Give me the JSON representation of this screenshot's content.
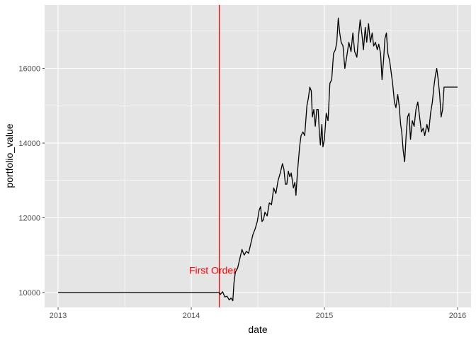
{
  "chart_data": {
    "type": "line",
    "title": "",
    "xlabel": "date",
    "ylabel": "portfolio_value",
    "x_type": "date",
    "xlim": [
      "2012-11-25",
      "2016-02-07"
    ],
    "ylim": [
      9600,
      17700
    ],
    "x_ticks": [
      {
        "value": "2013-01-01",
        "label": "2013"
      },
      {
        "value": "2014-01-01",
        "label": "2014"
      },
      {
        "value": "2015-01-01",
        "label": "2015"
      },
      {
        "value": "2016-01-01",
        "label": "2016"
      }
    ],
    "y_ticks": [
      {
        "value": 10000,
        "label": "10000"
      },
      {
        "value": 12000,
        "label": "12000"
      },
      {
        "value": 14000,
        "label": "14000"
      },
      {
        "value": 16000,
        "label": "16000"
      }
    ],
    "grid": true,
    "colors": {
      "panel_bg": "#e5e5e5",
      "grid_major": "#ffffff",
      "line": "#000000",
      "vline": "#ff0000",
      "annotation": "#ff0000"
    },
    "annotation": {
      "text": "First Order",
      "x": "2014-03-01",
      "y": 10500
    },
    "vline": {
      "x": "2014-03-19"
    },
    "series": [
      {
        "points": [
          [
            "2013-01-01",
            10000
          ],
          [
            "2013-06-01",
            10000
          ],
          [
            "2013-12-01",
            10000
          ],
          [
            "2014-03-18",
            10000
          ],
          [
            "2014-03-22",
            9950
          ],
          [
            "2014-03-28",
            10020
          ],
          [
            "2014-04-03",
            9880
          ],
          [
            "2014-04-09",
            9900
          ],
          [
            "2014-04-15",
            9800
          ],
          [
            "2014-04-20",
            9850
          ],
          [
            "2014-04-25",
            9780
          ],
          [
            "2014-04-28",
            10250
          ],
          [
            "2014-05-02",
            10550
          ],
          [
            "2014-05-08",
            10650
          ],
          [
            "2014-05-14",
            10900
          ],
          [
            "2014-05-20",
            11150
          ],
          [
            "2014-05-26",
            11000
          ],
          [
            "2014-06-01",
            11100
          ],
          [
            "2014-06-07",
            11050
          ],
          [
            "2014-06-13",
            11300
          ],
          [
            "2014-06-19",
            11550
          ],
          [
            "2014-06-25",
            11700
          ],
          [
            "2014-07-01",
            11900
          ],
          [
            "2014-07-06",
            12200
          ],
          [
            "2014-07-10",
            12300
          ],
          [
            "2014-07-14",
            11900
          ],
          [
            "2014-07-18",
            11950
          ],
          [
            "2014-07-22",
            12150
          ],
          [
            "2014-07-28",
            12050
          ],
          [
            "2014-08-03",
            12400
          ],
          [
            "2014-08-09",
            12350
          ],
          [
            "2014-08-15",
            12800
          ],
          [
            "2014-08-21",
            12650
          ],
          [
            "2014-08-27",
            13000
          ],
          [
            "2014-09-02",
            13200
          ],
          [
            "2014-09-08",
            13450
          ],
          [
            "2014-09-12",
            13300
          ],
          [
            "2014-09-16",
            12900
          ],
          [
            "2014-09-20",
            12900
          ],
          [
            "2014-09-24",
            13250
          ],
          [
            "2014-09-28",
            13100
          ],
          [
            "2014-10-02",
            13200
          ],
          [
            "2014-10-08",
            12800
          ],
          [
            "2014-10-12",
            12950
          ],
          [
            "2014-10-15",
            12600
          ],
          [
            "2014-10-19",
            13200
          ],
          [
            "2014-10-25",
            13900
          ],
          [
            "2014-10-29",
            14200
          ],
          [
            "2014-11-03",
            14300
          ],
          [
            "2014-11-08",
            14200
          ],
          [
            "2014-11-14",
            15000
          ],
          [
            "2014-11-18",
            15200
          ],
          [
            "2014-11-22",
            15500
          ],
          [
            "2014-11-26",
            15400
          ],
          [
            "2014-11-29",
            14700
          ],
          [
            "2014-12-03",
            14900
          ],
          [
            "2014-12-07",
            14450
          ],
          [
            "2014-12-11",
            14900
          ],
          [
            "2014-12-15",
            14900
          ],
          [
            "2014-12-18",
            14300
          ],
          [
            "2014-12-21",
            13950
          ],
          [
            "2014-12-25",
            14500
          ],
          [
            "2014-12-28",
            13900
          ],
          [
            "2015-01-01",
            14100
          ],
          [
            "2015-01-06",
            14800
          ],
          [
            "2015-01-11",
            14600
          ],
          [
            "2015-01-16",
            15600
          ],
          [
            "2015-01-21",
            15700
          ],
          [
            "2015-01-26",
            16400
          ],
          [
            "2015-01-31",
            16500
          ],
          [
            "2015-02-04",
            16700
          ],
          [
            "2015-02-08",
            17350
          ],
          [
            "2015-02-12",
            16950
          ],
          [
            "2015-02-16",
            16700
          ],
          [
            "2015-02-21",
            16600
          ],
          [
            "2015-02-26",
            16000
          ],
          [
            "2015-03-03",
            16300
          ],
          [
            "2015-03-09",
            16700
          ],
          [
            "2015-03-15",
            16450
          ],
          [
            "2015-03-20",
            16950
          ],
          [
            "2015-03-25",
            16450
          ],
          [
            "2015-03-31",
            16300
          ],
          [
            "2015-04-05",
            16900
          ],
          [
            "2015-04-09",
            17300
          ],
          [
            "2015-04-14",
            16900
          ],
          [
            "2015-04-18",
            16500
          ],
          [
            "2015-04-23",
            17100
          ],
          [
            "2015-04-27",
            16700
          ],
          [
            "2015-05-02",
            17200
          ],
          [
            "2015-05-07",
            16700
          ],
          [
            "2015-05-12",
            16950
          ],
          [
            "2015-05-16",
            16600
          ],
          [
            "2015-05-21",
            16700
          ],
          [
            "2015-05-26",
            16500
          ],
          [
            "2015-05-30",
            16650
          ],
          [
            "2015-06-04",
            16400
          ],
          [
            "2015-06-08",
            15700
          ],
          [
            "2015-06-12",
            16200
          ],
          [
            "2015-06-16",
            16800
          ],
          [
            "2015-06-20",
            16950
          ],
          [
            "2015-06-24",
            16400
          ],
          [
            "2015-06-29",
            16200
          ],
          [
            "2015-07-03",
            15900
          ],
          [
            "2015-07-07",
            15600
          ],
          [
            "2015-07-12",
            15100
          ],
          [
            "2015-07-16",
            14950
          ],
          [
            "2015-07-21",
            15300
          ],
          [
            "2015-07-25",
            15000
          ],
          [
            "2015-07-29",
            14500
          ],
          [
            "2015-08-01",
            14300
          ],
          [
            "2015-08-05",
            13800
          ],
          [
            "2015-08-09",
            13500
          ],
          [
            "2015-08-13",
            14200
          ],
          [
            "2015-08-17",
            14700
          ],
          [
            "2015-08-21",
            14800
          ],
          [
            "2015-08-25",
            14100
          ],
          [
            "2015-08-30",
            14600
          ],
          [
            "2015-09-04",
            14450
          ],
          [
            "2015-09-09",
            14900
          ],
          [
            "2015-09-14",
            15100
          ],
          [
            "2015-09-19",
            14700
          ],
          [
            "2015-09-24",
            14300
          ],
          [
            "2015-09-29",
            14400
          ],
          [
            "2015-10-03",
            14200
          ],
          [
            "2015-10-09",
            14500
          ],
          [
            "2015-10-14",
            14300
          ],
          [
            "2015-10-19",
            14800
          ],
          [
            "2015-10-24",
            15100
          ],
          [
            "2015-10-28",
            15500
          ],
          [
            "2015-11-01",
            15800
          ],
          [
            "2015-11-05",
            16000
          ],
          [
            "2015-11-09",
            15700
          ],
          [
            "2015-11-13",
            15300
          ],
          [
            "2015-11-17",
            14700
          ],
          [
            "2015-11-21",
            14900
          ],
          [
            "2015-11-25",
            15500
          ],
          [
            "2015-12-01",
            15500
          ],
          [
            "2015-12-15",
            15500
          ],
          [
            "2016-01-01",
            15500
          ]
        ]
      }
    ]
  }
}
